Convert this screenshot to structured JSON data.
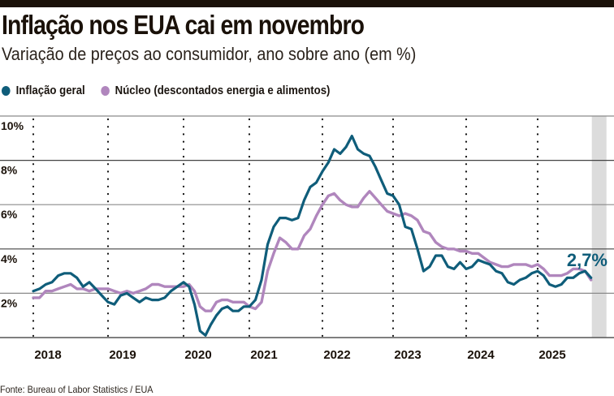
{
  "header": {
    "title": "Inflação nos EUA cai em novembro",
    "subtitle": "Variação de preços ao consumidor, ano sobre ano (em %)"
  },
  "legend": [
    {
      "label": "Inflação geral",
      "color": "#0f5d7a"
    },
    {
      "label": "Núcleo (descontados energia e alimentos)",
      "color": "#b086bd"
    }
  ],
  "source": "Fonte: Bureau of Labor Statistics / EUA",
  "chart_data": {
    "type": "line",
    "title": "Inflação nos EUA cai em novembro",
    "subtitle": "Variação de preços ao consumidor, ano sobre ano (em %)",
    "xlabel": "",
    "ylabel": "",
    "ylim": [
      0,
      10
    ],
    "yticks": [
      2,
      4,
      6,
      8,
      10
    ],
    "ytick_labels": [
      "2%",
      "4%",
      "6%",
      "8%",
      "10%"
    ],
    "xticks": [
      2018,
      2019,
      2020,
      2021,
      2022,
      2023,
      2024,
      2025
    ],
    "xtick_labels": [
      "2018",
      "2019",
      "2020",
      "2021",
      "2022",
      "2023",
      "2024",
      "2025"
    ],
    "x_start": "2018-01",
    "grid": "horizontal solid, vertical dotted at year starts",
    "highlight_band": "latest month (Nov 2025)",
    "annotation": {
      "text": "2,7%",
      "series": "Inflação geral",
      "position": "end"
    },
    "series": [
      {
        "name": "Inflação geral",
        "color": "#0f5d7a",
        "values": [
          2.1,
          2.2,
          2.4,
          2.5,
          2.8,
          2.9,
          2.9,
          2.7,
          2.3,
          2.5,
          2.2,
          1.9,
          1.6,
          1.5,
          1.9,
          2.0,
          1.8,
          1.6,
          1.8,
          1.7,
          1.7,
          1.8,
          2.1,
          2.3,
          2.5,
          2.3,
          1.5,
          0.3,
          0.1,
          0.6,
          1.0,
          1.3,
          1.4,
          1.2,
          1.2,
          1.4,
          1.4,
          1.7,
          2.6,
          4.2,
          5.0,
          5.4,
          5.4,
          5.3,
          5.4,
          6.2,
          6.8,
          7.0,
          7.5,
          7.9,
          8.5,
          8.3,
          8.6,
          9.1,
          8.5,
          8.3,
          8.2,
          7.7,
          7.1,
          6.5,
          6.4,
          6.0,
          5.0,
          4.9,
          4.0,
          3.0,
          3.2,
          3.7,
          3.7,
          3.2,
          3.1,
          3.4,
          3.1,
          3.2,
          3.5,
          3.4,
          3.3,
          3.0,
          2.9,
          2.5,
          2.4,
          2.6,
          2.7,
          2.9,
          3.0,
          2.8,
          2.4,
          2.3,
          2.4,
          2.7,
          2.7,
          2.9,
          3.0,
          2.7
        ]
      },
      {
        "name": "Núcleo (descontados energia e alimentos)",
        "color": "#b086bd",
        "values": [
          1.8,
          1.8,
          2.1,
          2.1,
          2.2,
          2.3,
          2.4,
          2.2,
          2.2,
          2.1,
          2.2,
          2.2,
          2.2,
          2.1,
          2.0,
          2.1,
          2.0,
          2.1,
          2.2,
          2.4,
          2.4,
          2.3,
          2.3,
          2.3,
          2.3,
          2.4,
          2.1,
          1.4,
          1.2,
          1.2,
          1.6,
          1.7,
          1.7,
          1.6,
          1.6,
          1.6,
          1.4,
          1.3,
          1.6,
          3.0,
          3.8,
          4.5,
          4.3,
          4.0,
          4.0,
          4.6,
          4.9,
          5.5,
          6.0,
          6.4,
          6.5,
          6.2,
          6.0,
          5.9,
          5.9,
          6.3,
          6.6,
          6.3,
          6.0,
          5.7,
          5.6,
          5.5,
          5.6,
          5.5,
          5.3,
          4.8,
          4.7,
          4.3,
          4.1,
          4.0,
          4.0,
          3.9,
          3.9,
          3.8,
          3.8,
          3.6,
          3.4,
          3.3,
          3.2,
          3.2,
          3.3,
          3.3,
          3.3,
          3.2,
          3.3,
          3.1,
          2.8,
          2.8,
          2.8,
          2.9,
          3.1,
          3.1,
          3.0,
          2.6
        ]
      }
    ]
  }
}
